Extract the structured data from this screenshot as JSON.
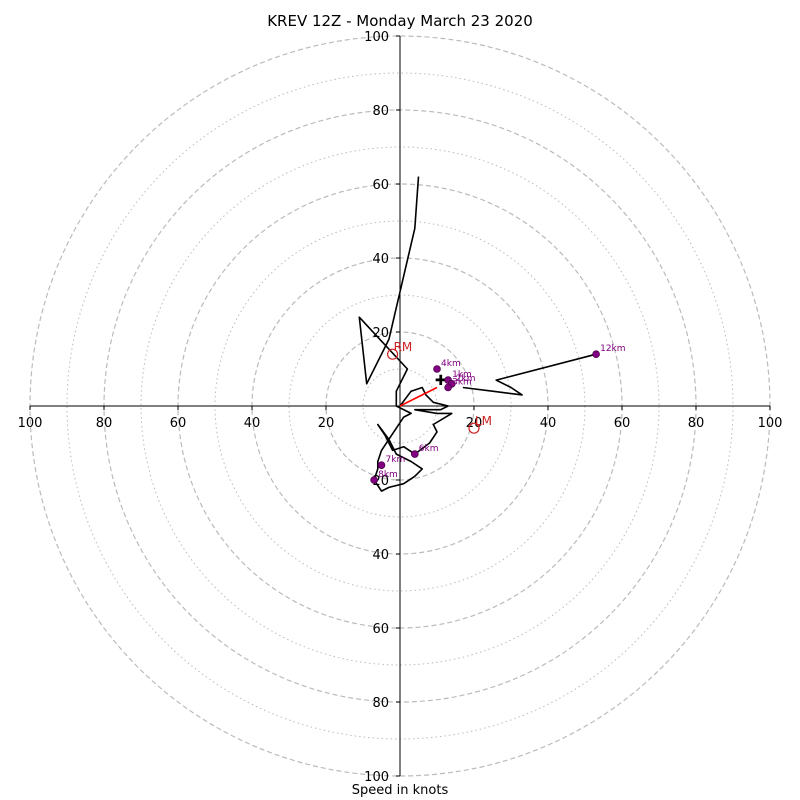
{
  "chart_data": {
    "type": "hodograph",
    "title": "KREV 12Z - Monday March 23 2020",
    "xlabel": "Speed in knots",
    "range": [
      -100,
      100
    ],
    "ring_major": [
      20,
      40,
      60,
      80,
      100
    ],
    "ring_minor": [
      10,
      30,
      50,
      70,
      90
    ],
    "tick_values": [
      100,
      80,
      60,
      40,
      20
    ],
    "colors": {
      "profile": "#000000",
      "lowlevel": "#ff0000",
      "height_marker": "#800080",
      "motion": "#cc2222",
      "rings": "#bbbbbb"
    },
    "profile": [
      [
        0,
        0
      ],
      [
        3,
        4
      ],
      [
        6,
        5
      ],
      [
        7,
        3
      ],
      [
        9,
        1
      ],
      [
        13,
        0
      ],
      [
        11,
        -1
      ],
      [
        4,
        -1
      ],
      [
        10,
        -2
      ],
      [
        14,
        -2
      ],
      [
        9,
        -5
      ],
      [
        10,
        -7
      ],
      [
        8,
        -10
      ],
      [
        4,
        -13
      ],
      [
        1,
        -11
      ],
      [
        -2,
        -12
      ],
      [
        -4,
        -8
      ],
      [
        -6,
        -5
      ],
      [
        -3,
        -9
      ],
      [
        -1,
        -13
      ],
      [
        3,
        -15
      ],
      [
        6,
        -17
      ],
      [
        4,
        -19
      ],
      [
        1,
        -21
      ],
      [
        -3,
        -22
      ],
      [
        -5,
        -23
      ],
      [
        -7,
        -20
      ],
      [
        -6,
        -17
      ],
      [
        -6,
        -15
      ],
      [
        -5,
        -12
      ],
      [
        1,
        -3
      ],
      [
        3,
        -2
      ],
      [
        -1,
        0
      ],
      [
        -1,
        4
      ],
      [
        2,
        10
      ],
      [
        -11,
        24
      ],
      [
        -9,
        6
      ],
      [
        -3,
        18
      ],
      [
        4,
        48
      ],
      [
        5,
        62
      ]
    ],
    "upper_profile": [
      [
        17,
        5
      ],
      [
        25,
        4
      ],
      [
        33,
        3
      ],
      [
        30,
        5
      ],
      [
        26,
        7
      ],
      [
        53,
        14
      ]
    ],
    "lowlevel_segment": [
      [
        0,
        0
      ],
      [
        10,
        5
      ]
    ],
    "height_markers": [
      {
        "label": "1km",
        "u": 13,
        "v": 7
      },
      {
        "label": "2km",
        "u": 14,
        "v": 6
      },
      {
        "label": "3km",
        "u": 13,
        "v": 5
      },
      {
        "label": "4km",
        "u": 10,
        "v": 10
      },
      {
        "label": "6km",
        "u": 4,
        "v": -13
      },
      {
        "label": "7km",
        "u": -5,
        "v": -16
      },
      {
        "label": "8km",
        "u": -7,
        "v": -20
      },
      {
        "label": "12km",
        "u": 53,
        "v": 14
      }
    ],
    "storm_motion": [
      {
        "label": "RM",
        "u": -2,
        "v": 14
      },
      {
        "label": "LM",
        "u": 20,
        "v": -6
      }
    ],
    "mean_wind_marker": [
      11,
      7
    ]
  }
}
